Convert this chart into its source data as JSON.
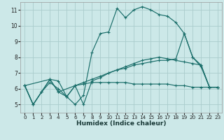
{
  "xlabel": "Humidex (Indice chaleur)",
  "background_color": "#cce8e8",
  "grid_color": "#aacccc",
  "line_color": "#1a6e6a",
  "xlim": [
    -0.5,
    23.5
  ],
  "ylim": [
    4.5,
    11.5
  ],
  "xticks": [
    0,
    1,
    2,
    3,
    4,
    5,
    6,
    7,
    8,
    9,
    10,
    11,
    12,
    13,
    14,
    15,
    16,
    17,
    18,
    19,
    20,
    21,
    22,
    23
  ],
  "yticks": [
    5,
    6,
    7,
    8,
    9,
    10,
    11
  ],
  "lines": [
    {
      "x": [
        0,
        1,
        2,
        3,
        4,
        5,
        6,
        7,
        8,
        9,
        10,
        11,
        12,
        13,
        14,
        15,
        16,
        17,
        18,
        19,
        20,
        21,
        22,
        23
      ],
      "y": [
        6.2,
        5.0,
        5.8,
        6.6,
        6.5,
        5.5,
        5.0,
        5.6,
        8.3,
        9.5,
        9.6,
        11.1,
        10.5,
        11.0,
        11.2,
        11.0,
        10.7,
        10.6,
        10.2,
        9.5,
        8.0,
        7.4,
        6.1,
        6.1
      ]
    },
    {
      "x": [
        0,
        3,
        4,
        6,
        7,
        8,
        9,
        10,
        11,
        12,
        13,
        14,
        15,
        16,
        17,
        18,
        19,
        20,
        21,
        22,
        23
      ],
      "y": [
        6.2,
        6.6,
        5.8,
        6.2,
        5.0,
        6.5,
        6.7,
        7.0,
        7.2,
        7.4,
        7.6,
        7.8,
        7.9,
        8.0,
        7.9,
        7.8,
        7.7,
        7.6,
        7.5,
        6.1,
        6.1
      ]
    },
    {
      "x": [
        0,
        1,
        2,
        3,
        4,
        5,
        6,
        7,
        8,
        9,
        10,
        11,
        12,
        13,
        14,
        15,
        16,
        17,
        18,
        19,
        20,
        21,
        22,
        23
      ],
      "y": [
        6.2,
        5.0,
        5.8,
        6.4,
        6.0,
        5.5,
        6.2,
        6.3,
        6.4,
        6.4,
        6.4,
        6.4,
        6.4,
        6.3,
        6.3,
        6.3,
        6.3,
        6.3,
        6.2,
        6.2,
        6.1,
        6.1,
        6.1,
        6.1
      ]
    },
    {
      "x": [
        0,
        1,
        2,
        3,
        4,
        5,
        6,
        7,
        8,
        9,
        10,
        11,
        12,
        13,
        14,
        15,
        16,
        17,
        18,
        19,
        20,
        21,
        22,
        23
      ],
      "y": [
        6.2,
        5.0,
        5.8,
        6.6,
        5.8,
        5.5,
        6.2,
        6.4,
        6.6,
        6.8,
        7.0,
        7.2,
        7.3,
        7.5,
        7.6,
        7.7,
        7.8,
        7.8,
        7.9,
        9.5,
        8.0,
        7.5,
        6.1,
        6.1
      ]
    }
  ]
}
